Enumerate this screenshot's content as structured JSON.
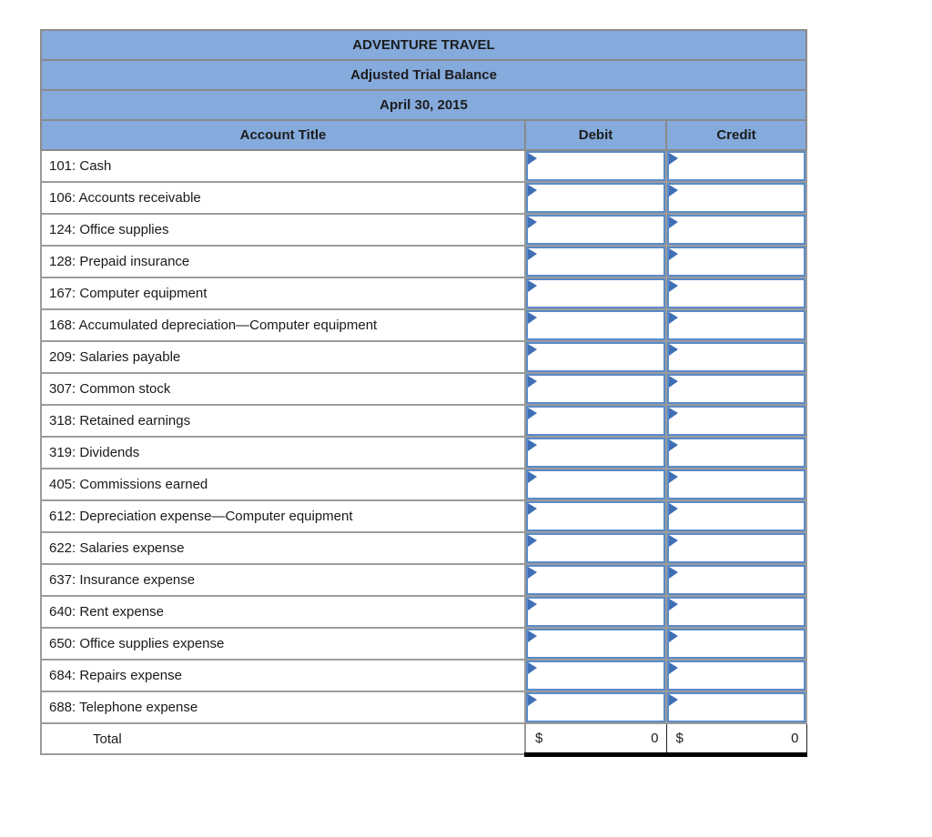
{
  "table": {
    "title": "ADVENTURE TRAVEL",
    "subtitle": "Adjusted Trial Balance",
    "date": "April 30, 2015",
    "columns": {
      "account": "Account Title",
      "debit": "Debit",
      "credit": "Credit"
    },
    "rows": [
      {
        "label": "101: Cash",
        "debit": "",
        "credit": ""
      },
      {
        "label": "106: Accounts receivable",
        "debit": "",
        "credit": ""
      },
      {
        "label": "124: Office supplies",
        "debit": "",
        "credit": ""
      },
      {
        "label": "128: Prepaid insurance",
        "debit": "",
        "credit": ""
      },
      {
        "label": "167: Computer equipment",
        "debit": "",
        "credit": ""
      },
      {
        "label": "168: Accumulated depreciation—Computer equipment",
        "debit": "",
        "credit": ""
      },
      {
        "label": "209: Salaries payable",
        "debit": "",
        "credit": ""
      },
      {
        "label": "307: Common stock",
        "debit": "",
        "credit": ""
      },
      {
        "label": "318: Retained earnings",
        "debit": "",
        "credit": ""
      },
      {
        "label": "319: Dividends",
        "debit": "",
        "credit": ""
      },
      {
        "label": "405: Commissions earned",
        "debit": "",
        "credit": ""
      },
      {
        "label": "612: Depreciation expense—Computer equipment",
        "debit": "",
        "credit": ""
      },
      {
        "label": "622: Salaries expense",
        "debit": "",
        "credit": ""
      },
      {
        "label": "637: Insurance expense",
        "debit": "",
        "credit": ""
      },
      {
        "label": "640: Rent expense",
        "debit": "",
        "credit": ""
      },
      {
        "label": "650: Office supplies expense",
        "debit": "",
        "credit": ""
      },
      {
        "label": "684: Repairs expense",
        "debit": "",
        "credit": ""
      },
      {
        "label": "688: Telephone expense",
        "debit": "",
        "credit": ""
      }
    ],
    "total": {
      "label": "Total",
      "currency_symbol": "$",
      "debit": "0",
      "credit": "0"
    }
  },
  "icons": {
    "cell_marker": "flag-triangle"
  },
  "colors": {
    "header_bg": "#85aadc",
    "header_grid": "#8a8a8a",
    "row_grid": "#9b9b9b",
    "input_border": "#5b8bc9",
    "marker_fill": "#3f6fb5",
    "total_rule": "#000000"
  }
}
